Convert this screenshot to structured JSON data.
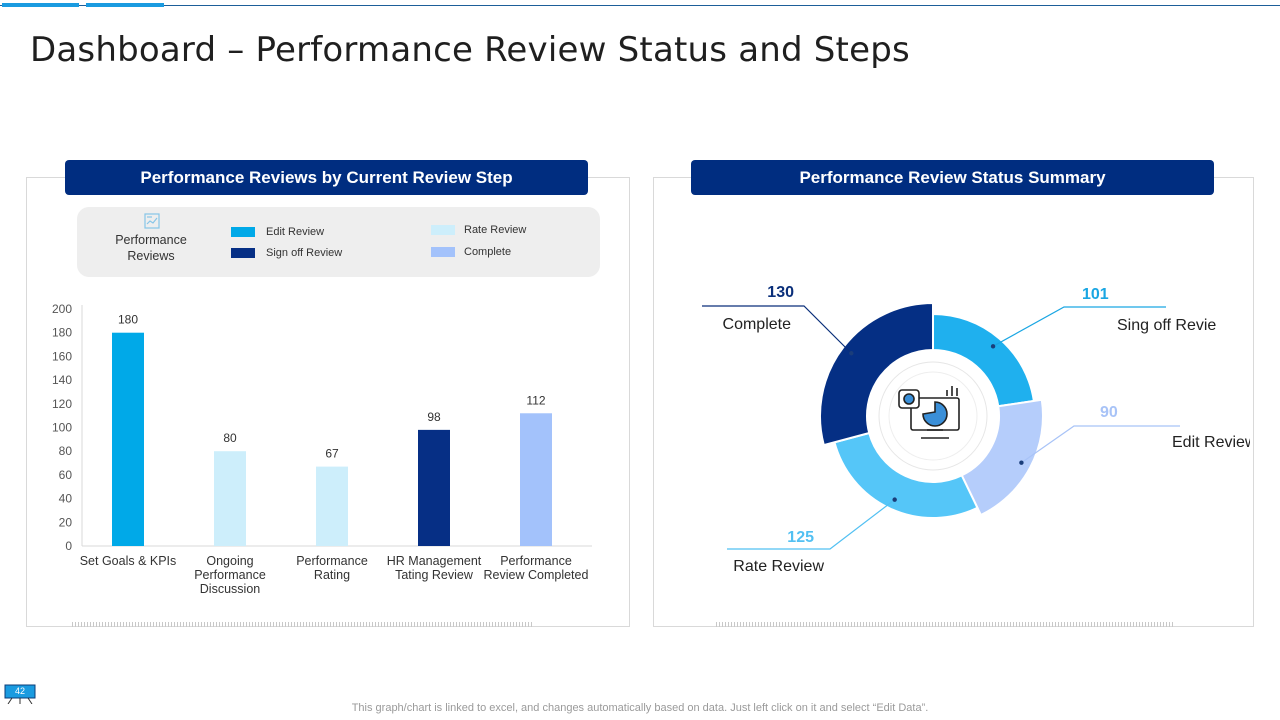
{
  "page": {
    "title": "Dashboard – Performance Review Status and Steps",
    "footer_note": "This graph/chart is linked to excel, and changes automatically based on data. Just left click on it and select “Edit Data”.",
    "page_number": "42"
  },
  "colors": {
    "header_bg": "#002d80",
    "edit_review": "#00a9e8",
    "sign_off_review": "#062f85",
    "rate_review": "#cdeefb",
    "complete": "#a3c2fb"
  },
  "left_panel": {
    "heading": "Performance Reviews by Current Review Step",
    "legend": {
      "title": "Performance Reviews",
      "icon": "chart-settings-icon",
      "items": [
        {
          "label": "Edit Review",
          "color": "#00a9e8"
        },
        {
          "label": "Sign off Review",
          "color": "#062f85"
        },
        {
          "label": "Rate Review",
          "color": "#cdeefb"
        },
        {
          "label": "Complete",
          "color": "#a3c2fb"
        }
      ]
    }
  },
  "right_panel": {
    "heading": "Performance Review Status Summary",
    "center_icon": "monitor-analytics-icon"
  },
  "chart_data": [
    {
      "type": "bar",
      "title": "Performance Reviews by Current Review Step",
      "categories": [
        "Set Goals & KPIs",
        "Ongoing Performance Discussion",
        "Performance Rating",
        "HR Management Tating Review",
        "Performance Review Completed"
      ],
      "category_lines": [
        [
          "Set Goals & KPIs"
        ],
        [
          "Ongoing",
          "Performance",
          "Discussion"
        ],
        [
          "Performance",
          "Rating"
        ],
        [
          "HR Management",
          "Tating Review"
        ],
        [
          "Performance",
          "Review Completed"
        ]
      ],
      "values": [
        180,
        80,
        67,
        98,
        112
      ],
      "bar_colors": [
        "#00a9e8",
        "#cdeefb",
        "#cdeefb",
        "#062f85",
        "#a3c2fb"
      ],
      "ylim": [
        0,
        200
      ],
      "yticks": [
        0,
        20,
        40,
        60,
        80,
        100,
        120,
        140,
        160,
        180,
        200
      ],
      "xlabel": "",
      "ylabel": "",
      "grid": false
    },
    {
      "type": "pie",
      "title": "Performance Review Status Summary",
      "donut": true,
      "slices": [
        {
          "label": "Sing off Revie",
          "value": 101,
          "color": "#1fb0ee"
        },
        {
          "label": "Edit Review",
          "value": 90,
          "color": "#b5cdfb"
        },
        {
          "label": "Rate Review",
          "value": 125,
          "color": "#55c6f8"
        },
        {
          "label": "Complete",
          "value": 130,
          "color": "#052f84"
        }
      ],
      "value_colors": [
        "#1aa6e3",
        "#a8c3f7",
        "#52c0f2",
        "#0a2f7a"
      ]
    }
  ]
}
